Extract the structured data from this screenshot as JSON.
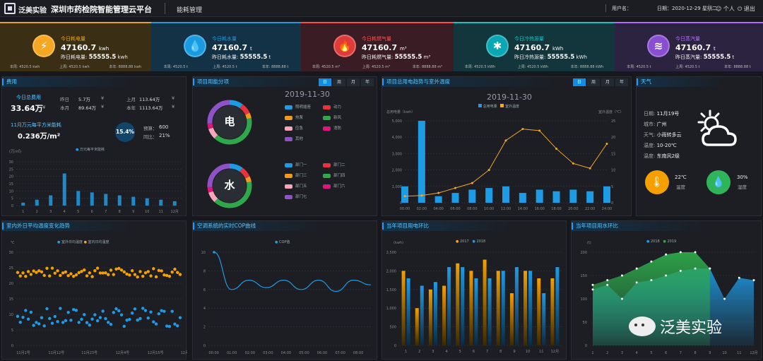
{
  "header": {
    "brand": "泛美实验",
    "title": "深圳市药检院智能管理云平台",
    "module": "能耗管理",
    "user": "用户名：",
    "date": "日期：2020-12-29  星期二",
    "personal": "个人",
    "logout": "退出"
  },
  "kpis": [
    {
      "title": "今日耗电量",
      "value": "47160.7",
      "unit": "kwh",
      "ylabel": "昨日耗电量:",
      "yvalue": "55555.5",
      "yunit": "kwh",
      "f1": "本周: 4520.5 kwh",
      "f2": "上周: 4520.5 kwh",
      "f3": "本年: 8888.88 kwh",
      "icon": "⚡",
      "color": "#e8a317",
      "bg": "#3a2e14",
      "ic": "#f5a623"
    },
    {
      "title": "今日耗水量",
      "value": "47160.7",
      "unit": "t",
      "ylabel": "昨日耗水量:",
      "yvalue": "55555.5",
      "yunit": "t",
      "f1": "本周: 4520.5 t",
      "f2": "上周: 4520.5 t",
      "f3": "本年: 8888.88 t",
      "icon": "💧",
      "color": "#1a9be0",
      "bg": "#143246",
      "ic": "#1a9be0"
    },
    {
      "title": "今日耗燃气量",
      "value": "47160.7",
      "unit": "m³",
      "ylabel": "昨日耗燃气量:",
      "yvalue": "55555.5",
      "yunit": "m³",
      "f1": "本周: 4520.5 m³",
      "f2": "上周: 4520.5 m³",
      "f3": "本年: 8888.88 m³",
      "icon": "🔥",
      "color": "#ff4d4f",
      "bg": "#3a1d24",
      "ic": "#e03b3b"
    },
    {
      "title": "今日冷热源量",
      "value": "47160.7",
      "unit": "kWh",
      "ylabel": "昨日冷热源量:",
      "yvalue": "55555.5",
      "yunit": "kWh",
      "f1": "本周: 4520.5 kWh",
      "f2": "上周: 4520.5 kWh",
      "f3": "本年: 8888.88 kWh",
      "icon": "✱",
      "color": "#17c3c3",
      "bg": "#12363c",
      "ic": "#0aa6b3"
    },
    {
      "title": "今日蒸汽量",
      "value": "47160.7",
      "unit": "t",
      "ylabel": "昨日蒸汽量:",
      "yvalue": "55555.5",
      "yunit": "t",
      "f1": "本周: 4520.5 t",
      "f2": "上周: 4520.5 t",
      "f3": "本年: 8888.88 t",
      "icon": "≋",
      "color": "#b36bff",
      "bg": "#2b2340",
      "ic": "#8a4fd1"
    }
  ],
  "fee": {
    "title": "费用",
    "today_label": "今日总费用",
    "today_value": "33.64万",
    "today_unit": "¥",
    "yesterday_label": "昨日",
    "yesterday_value": "5.7万",
    "yesterday_unit": "¥",
    "lastmonth_label": "上月",
    "lastmonth_value": "113.64万",
    "lastmonth_unit": "¥",
    "month_label": "本月",
    "month_value": "89.64万",
    "month_unit": "¥",
    "year_label": "本年",
    "year_value": "1113.64万",
    "year_unit": "¥",
    "nov_label": "11月万元每平方米能耗",
    "nov_value": "0.236万/m²",
    "pct": "15.4%",
    "budget_label": "预算：",
    "budget_value": "600",
    "yoy_label": "同比：",
    "yoy_value": "21%",
    "unit_label": "(万/㎡)",
    "legend": "万元每平米能耗"
  },
  "fee_chart": {
    "type": "bar",
    "categories": [
      "1",
      "2",
      "3",
      "4",
      "5",
      "6",
      "7",
      "8",
      "9",
      "10",
      "11",
      "12月"
    ],
    "values": [
      2,
      4,
      7,
      22,
      10,
      9,
      8,
      7,
      6,
      5,
      4,
      3
    ],
    "ylim": [
      0,
      30
    ],
    "yticks": [
      "0",
      "5",
      "10",
      "15",
      "20",
      "25",
      "30"
    ]
  },
  "usage": {
    "title": "项目用能分项",
    "date": "2019-11-30",
    "tabs": [
      "日",
      "周",
      "月",
      "年"
    ],
    "elec_label": "电",
    "water_label": "水",
    "elec_legend": [
      {
        "name": "照明插座",
        "color": "#1e9be5"
      },
      {
        "name": "动力",
        "color": "#e8323c"
      },
      {
        "name": "热泵",
        "color": "#f29b1a"
      },
      {
        "name": "新风",
        "color": "#2ea84a"
      },
      {
        "name": "应急",
        "color": "#f5a6b8"
      },
      {
        "name": "消防",
        "color": "#e0157a"
      },
      {
        "name": "其他",
        "color": "#8e52c6"
      }
    ],
    "water_legend": [
      {
        "name": "部门一",
        "color": "#1e9be5"
      },
      {
        "name": "部门二",
        "color": "#e8323c"
      },
      {
        "name": "部门三",
        "color": "#f29b1a"
      },
      {
        "name": "部门四",
        "color": "#2ea84a"
      },
      {
        "name": "部门五",
        "color": "#f5a6b8"
      },
      {
        "name": "部门六",
        "color": "#e0157a"
      },
      {
        "name": "部门七",
        "color": "#8e52c6"
      }
    ]
  },
  "trend": {
    "title": "项目总用电趋势与室外温度",
    "date": "2019-11-30",
    "tabs": [
      "日",
      "周",
      "月",
      "年"
    ],
    "legend_bar": "总用电量",
    "legend_line": "室外温度",
    "ylabel": "总用电量（kwh）",
    "y2label": "室外温度（℃）"
  },
  "trend_chart": {
    "type": "bar",
    "categories": [
      "00:00",
      "02:00",
      "04:00",
      "06:00",
      "08:00",
      "10:00",
      "12:00",
      "14:00",
      "16:00",
      "18:00",
      "20:00",
      "22:00",
      "24:00"
    ],
    "series": [
      {
        "name": "总用电量",
        "values": [
          1000,
          5000,
          400,
          600,
          800,
          900,
          1000,
          600,
          800,
          700,
          800,
          700,
          1000
        ]
      },
      {
        "name": "室外温度",
        "values": [
          2,
          2.2,
          3,
          4.5,
          6,
          10,
          19,
          22.5,
          22,
          16.5,
          12,
          10.5,
          18
        ]
      }
    ],
    "ylim": [
      0,
      5000
    ],
    "y2lim": [
      0,
      25
    ],
    "yticks": [
      "0",
      "1,000",
      "2,000",
      "3,000",
      "4,000",
      "5,000"
    ],
    "y2ticks": [
      "0",
      "5",
      "10",
      "15",
      "20",
      "25"
    ]
  },
  "weather": {
    "title": "天气",
    "date_label": "日期:",
    "date": "11月19号",
    "city_label": "城市:",
    "city": "广州",
    "wx_label": "天气:",
    "wx": "小雨转多云",
    "temp_label": "温度:",
    "temp": "10-20℃",
    "wind_label": "温度:",
    "wind": "东南风2级",
    "t_value": "22℃",
    "t_label": "温度",
    "h_value": "30%",
    "h_label": "湿度"
  },
  "indoor": {
    "title": "室内外日平均温度变化趋势",
    "unit": "℃",
    "legend1": "室外日均温度",
    "legend2": "室内日均温度",
    "xticks": [
      "11月1号",
      "11月12号",
      "11月23号",
      "12月4号",
      "12月15号",
      "12月26号"
    ],
    "yticks": [
      "0",
      "5",
      "10",
      "15",
      "20",
      "25",
      "30"
    ]
  },
  "cop": {
    "title": "空调系统的实时COP曲线",
    "legend": "COP值",
    "xticks": [
      "00:00",
      "01:00",
      "02:00",
      "03:00",
      "04:00",
      "05:00",
      "06:00",
      "07:00",
      "08:00"
    ],
    "yticks": [
      "0",
      "2",
      "4",
      "6",
      "8",
      "10"
    ],
    "values": [
      10,
      6,
      7,
      6.2,
      7,
      6,
      7,
      5.8,
      7,
      6.5
    ]
  },
  "elec_ratio": {
    "title": "当年项目用电环比",
    "unit": "(kwh)",
    "legend1": "2017",
    "legend2": "2018",
    "xticks": [
      "1",
      "2",
      "3",
      "4",
      "5",
      "6",
      "7",
      "8",
      "9",
      "10",
      "11",
      "12月"
    ],
    "yticks": [
      "0",
      "500",
      "1,000",
      "1,500",
      "2,000",
      "2,500"
    ],
    "s2017": [
      2000,
      1000,
      1500,
      1600,
      2200,
      2000,
      2300,
      2000,
      1400,
      2000,
      1800,
      1800
    ],
    "s2018": [
      1800,
      1600,
      1700,
      2100,
      2100,
      1800,
      1800,
      2000,
      2100,
      2000,
      1400,
      2100
    ]
  },
  "water_ratio": {
    "title": "当年项目用水环比",
    "unit": "(t)",
    "legend1": "2018",
    "legend2": "2019",
    "xticks": [
      "1",
      "2",
      "3",
      "4",
      "5",
      "6",
      "7",
      "8",
      "9",
      "10",
      "11",
      "12月"
    ],
    "yticks": [
      "0",
      "50",
      "100",
      "150",
      "200"
    ],
    "s2018": [
      120,
      130,
      100,
      135,
      140,
      150,
      160,
      165,
      165,
      100,
      145,
      140
    ],
    "s2019": [
      130,
      140,
      150,
      165,
      180,
      195,
      200,
      200,
      165,
      null,
      null,
      null
    ]
  },
  "watermark": "泛美实验"
}
